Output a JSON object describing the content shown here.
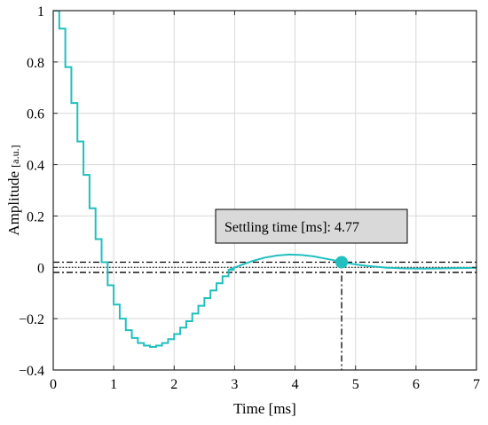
{
  "chart_data": {
    "type": "line",
    "xlabel": "Time",
    "xunit": "[ms]",
    "ylabel": "Amplitude",
    "yunit": "[a.u.]",
    "xlim": [
      0,
      7
    ],
    "ylim": [
      -0.4,
      1
    ],
    "grid": true,
    "xticks": [
      0,
      1,
      2,
      3,
      4,
      5,
      6,
      7
    ],
    "xtick_labels": [
      "0",
      "1",
      "2",
      "3",
      "4",
      "5",
      "6",
      "7"
    ],
    "yticks": [
      1,
      0.8,
      0.6,
      0.4,
      0.2,
      0,
      -0.2,
      -0.4
    ],
    "ytick_labels": [
      "1",
      "0.8",
      "0.6",
      "0.4",
      "0.2",
      "0",
      "−0.2",
      "−0.4"
    ],
    "colors": {
      "series": "#21bfbf",
      "grid": "#d9d9d9",
      "reference": "#000000",
      "annotation_box": "#d9d9d9"
    },
    "series": [
      {
        "staircase": {
          "step": 0.1,
          "values": [
            1.0,
            0.93,
            0.78,
            0.64,
            0.49,
            0.36,
            0.23,
            0.11,
            0.02,
            -0.07,
            -0.145,
            -0.2,
            -0.245,
            -0.275,
            -0.295,
            -0.305,
            -0.31,
            -0.305,
            -0.295,
            -0.28,
            -0.26,
            -0.235,
            -0.21,
            -0.18,
            -0.15,
            -0.12,
            -0.09,
            -0.062,
            -0.035,
            -0.01
          ]
        },
        "curve": {
          "x": [
            2.9,
            3.1,
            3.3,
            3.5,
            3.7,
            3.9,
            4.1,
            4.3,
            4.5,
            4.7,
            4.9,
            5.1,
            5.3,
            5.5,
            5.8,
            6.1,
            6.4,
            6.7,
            7.0
          ],
          "y": [
            -0.01,
            0.008,
            0.025,
            0.038,
            0.046,
            0.05,
            0.048,
            0.043,
            0.034,
            0.025,
            0.015,
            0.008,
            0.003,
            -0.001,
            -0.004,
            -0.005,
            -0.004,
            -0.003,
            -0.002
          ]
        }
      }
    ],
    "reference_lines": {
      "upper": 0.02,
      "center": 0,
      "lower": -0.02
    },
    "annotation": {
      "label": "Settling time [ms]: 4.77",
      "x": 4.77,
      "y": 0.02
    }
  }
}
